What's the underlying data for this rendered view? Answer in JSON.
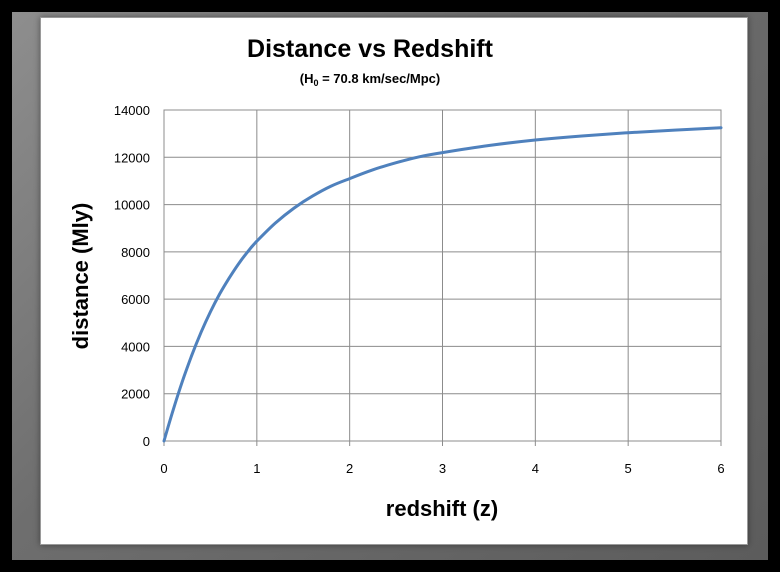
{
  "chart_data": {
    "type": "line",
    "title": "Distance vs Redshift",
    "subtitle_prefix": "(H",
    "subtitle_subscript": "0",
    "subtitle_suffix": " = 70.8 km/sec/Mpc)",
    "xlabel": "redshift (z)",
    "ylabel": "distance (Mly)",
    "xlim": [
      0,
      6
    ],
    "ylim": [
      0,
      14000
    ],
    "xticks": [
      0,
      1,
      2,
      3,
      4,
      5,
      6
    ],
    "yticks": [
      0,
      2000,
      4000,
      6000,
      8000,
      10000,
      12000,
      14000
    ],
    "grid": true,
    "legend": "none",
    "series": [
      {
        "color": "#4f81bd",
        "x": [
          0,
          0.1,
          0.2,
          0.3,
          0.4,
          0.5,
          0.6,
          0.7,
          0.8,
          0.9,
          1.0,
          1.2,
          1.4,
          1.6,
          1.8,
          2.0,
          2.25,
          2.5,
          2.75,
          3.0,
          3.5,
          4.0,
          4.5,
          5.0,
          5.5,
          6.0
        ],
        "y": [
          0,
          1330,
          2550,
          3630,
          4600,
          5460,
          6220,
          6880,
          7480,
          8000,
          8450,
          9220,
          9850,
          10360,
          10780,
          11100,
          11470,
          11770,
          12020,
          12200,
          12500,
          12730,
          12900,
          13040,
          13150,
          13250
        ]
      }
    ]
  }
}
